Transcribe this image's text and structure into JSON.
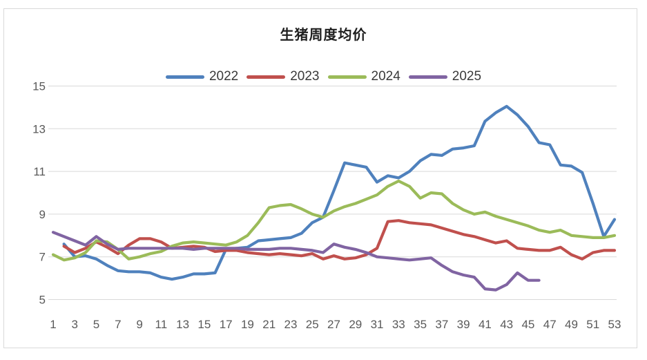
{
  "title": "生猪周度均价",
  "chart_data": {
    "type": "line",
    "title": "生猪周度均价",
    "xlabel": "",
    "ylabel": "",
    "x_unit": "week",
    "x": [
      1,
      2,
      3,
      4,
      5,
      6,
      7,
      8,
      9,
      10,
      11,
      12,
      13,
      14,
      15,
      16,
      17,
      18,
      19,
      20,
      21,
      22,
      23,
      24,
      25,
      26,
      27,
      28,
      29,
      30,
      31,
      32,
      33,
      34,
      35,
      36,
      37,
      38,
      39,
      40,
      41,
      42,
      43,
      44,
      45,
      46,
      47,
      48,
      49,
      50,
      51,
      52,
      53
    ],
    "xticks": [
      1,
      3,
      5,
      7,
      9,
      11,
      13,
      15,
      17,
      19,
      21,
      23,
      25,
      27,
      29,
      31,
      33,
      35,
      37,
      39,
      41,
      43,
      45,
      47,
      49,
      51,
      53
    ],
    "yticks": [
      5,
      7,
      9,
      11,
      13,
      15
    ],
    "ylim": [
      5,
      15
    ],
    "grid": true,
    "legend_position": "top",
    "gridline_color": "#d9d9d9",
    "axis_label_color": "#595959",
    "series": [
      {
        "name": "2022",
        "color": "#4F81BD",
        "values": [
          null,
          7.6,
          7.0,
          7.05,
          6.9,
          6.6,
          6.35,
          6.3,
          6.3,
          6.25,
          6.05,
          5.95,
          6.05,
          6.2,
          6.2,
          6.25,
          7.35,
          7.4,
          7.45,
          7.75,
          7.8,
          7.85,
          7.9,
          8.1,
          8.6,
          8.85,
          10.1,
          11.4,
          11.3,
          11.2,
          10.5,
          10.8,
          10.7,
          11.0,
          11.5,
          11.8,
          11.75,
          12.05,
          12.1,
          12.2,
          13.35,
          13.75,
          14.05,
          13.65,
          13.1,
          12.35,
          12.25,
          11.3,
          11.25,
          10.95,
          9.5,
          7.95,
          8.75
        ]
      },
      {
        "name": "2023",
        "color": "#C0504D",
        "values": [
          null,
          7.5,
          7.2,
          7.4,
          7.7,
          7.45,
          7.15,
          7.55,
          7.85,
          7.85,
          7.7,
          7.4,
          7.45,
          7.5,
          7.45,
          7.25,
          7.3,
          7.3,
          7.2,
          7.15,
          7.1,
          7.15,
          7.1,
          7.05,
          7.15,
          6.9,
          7.05,
          6.9,
          6.95,
          7.1,
          7.4,
          8.65,
          8.7,
          8.6,
          8.55,
          8.5,
          8.35,
          8.2,
          8.05,
          7.95,
          7.8,
          7.65,
          7.75,
          7.4,
          7.35,
          7.3,
          7.3,
          7.45,
          7.1,
          6.9,
          7.2,
          7.3,
          7.3
        ]
      },
      {
        "name": "2024",
        "color": "#9BBB59",
        "values": [
          7.1,
          6.85,
          6.95,
          7.2,
          7.75,
          7.7,
          7.35,
          6.9,
          7.0,
          7.15,
          7.25,
          7.5,
          7.65,
          7.7,
          7.65,
          7.6,
          7.55,
          7.7,
          8.0,
          8.6,
          9.3,
          9.4,
          9.45,
          9.25,
          9.0,
          8.85,
          9.15,
          9.35,
          9.5,
          9.7,
          9.9,
          10.3,
          10.55,
          10.3,
          9.75,
          10.0,
          9.95,
          9.5,
          9.2,
          9.0,
          9.1,
          8.9,
          8.75,
          8.6,
          8.45,
          8.25,
          8.15,
          8.25,
          8.0,
          7.95,
          7.9,
          7.9,
          8.0
        ]
      },
      {
        "name": "2025",
        "color": "#8064A2",
        "values": [
          8.15,
          7.95,
          7.75,
          7.55,
          7.95,
          7.6,
          7.35,
          7.4,
          7.4,
          7.4,
          7.4,
          7.4,
          7.4,
          7.35,
          7.4,
          7.4,
          7.4,
          7.4,
          7.35,
          7.35,
          7.35,
          7.4,
          7.4,
          7.35,
          7.3,
          7.2,
          7.6,
          7.45,
          7.35,
          7.2,
          7.0,
          6.95,
          6.9,
          6.85,
          6.9,
          6.95,
          6.6,
          6.3,
          6.15,
          6.05,
          5.5,
          5.45,
          5.7,
          6.25,
          5.9,
          5.9,
          null,
          null,
          null,
          null,
          null,
          null,
          null
        ]
      }
    ]
  }
}
